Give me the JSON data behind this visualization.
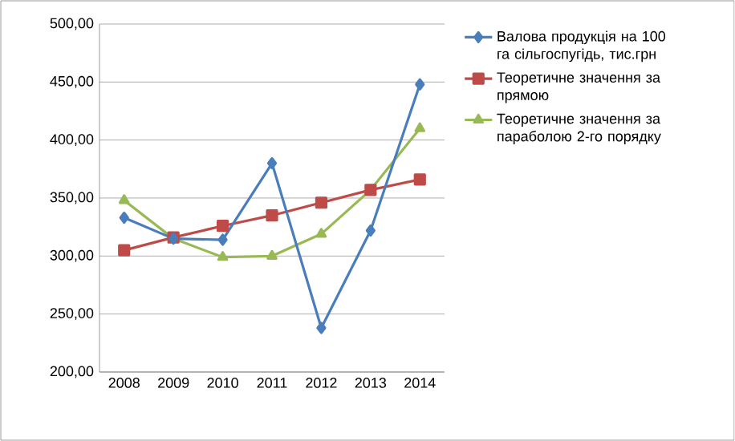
{
  "chart_data": {
    "type": "line",
    "categories": [
      "2008",
      "2009",
      "2010",
      "2011",
      "2012",
      "2013",
      "2014"
    ],
    "series": [
      {
        "name": "Валова продукція на 100 га сільгоспугідь, тис.грн",
        "color": "#4a7ebb",
        "marker": "diamond",
        "values": [
          333,
          315,
          314,
          380,
          238,
          322,
          448
        ]
      },
      {
        "name": "Теоретичне значення за прямою",
        "color": "#be4b48",
        "marker": "square",
        "values": [
          305,
          316,
          326,
          335,
          346,
          357,
          366
        ]
      },
      {
        "name": "Теоретичне значення за параболою 2-го порядку",
        "color": "#98b954",
        "marker": "triangle",
        "values": [
          348,
          315,
          299,
          300,
          319,
          357,
          410
        ]
      }
    ],
    "ylim": [
      200,
      500
    ],
    "yticks": [
      {
        "value": 200,
        "label": "200,00"
      },
      {
        "value": 250,
        "label": "250,00"
      },
      {
        "value": 300,
        "label": "300,00"
      },
      {
        "value": 350,
        "label": "350,00"
      },
      {
        "value": 400,
        "label": "400,00"
      },
      {
        "value": 450,
        "label": "450,00"
      },
      {
        "value": 500,
        "label": "500,00"
      }
    ],
    "grid": "y",
    "legend": "right"
  }
}
